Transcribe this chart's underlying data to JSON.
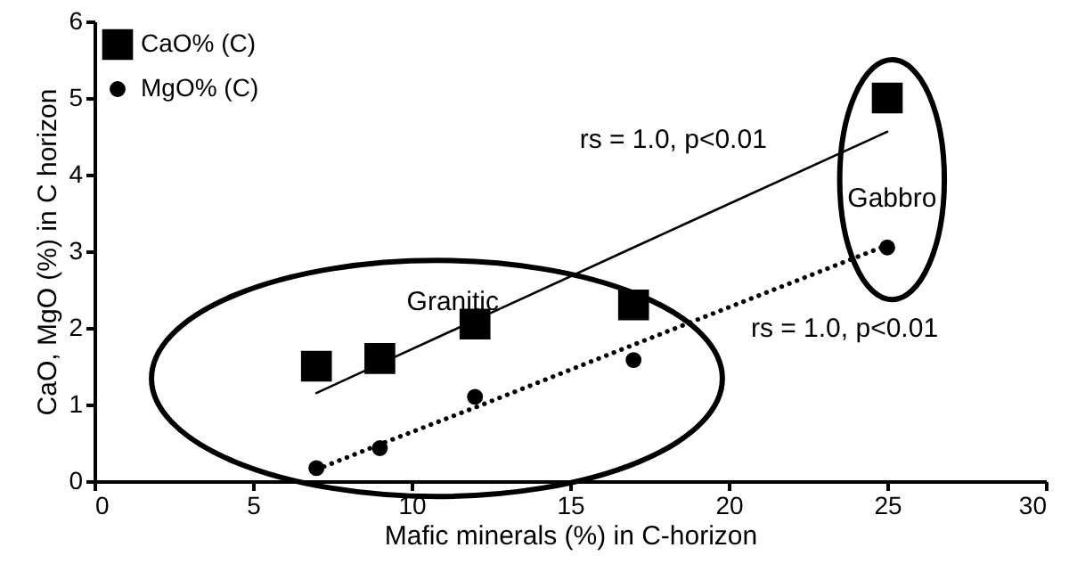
{
  "chart_data": {
    "type": "scatter",
    "xlabel": "Mafic minerals (%) in C-horizon",
    "ylabel": "CaO, MgO (%) in C horizon",
    "x": [
      7,
      9,
      12,
      17,
      25
    ],
    "series": [
      {
        "name": "CaO% (C)",
        "color": "#000000",
        "marker": "square",
        "values": [
          1.5,
          1.6,
          2.05,
          2.3,
          5.0
        ]
      },
      {
        "name": "MgO% (C)",
        "color": "#000000",
        "marker": "circle",
        "values": [
          0.17,
          0.43,
          1.1,
          1.58,
          3.05
        ]
      },
      {
        "type": "line",
        "color": "#000000",
        "line_style": "solid",
        "values": [
          1.15,
          1.53,
          2.1,
          3.05,
          4.56
        ]
      },
      {
        "type": "line",
        "color": "#000000",
        "line_style": "dotted",
        "values": [
          0.15,
          0.48,
          0.96,
          1.78,
          3.08
        ]
      }
    ],
    "annotations": [
      "Granitic",
      "rs = 1.0, p<0.01",
      "Gabbro",
      "rs = 1.0, p<0.01"
    ],
    "xlim": [
      0,
      30
    ],
    "xticks": [
      0,
      5,
      10,
      15,
      20,
      25,
      30
    ],
    "ylim": [
      0,
      6
    ],
    "yticks": [
      0,
      1,
      2,
      3,
      4,
      5,
      6
    ],
    "grid": false,
    "legend": "top left"
  }
}
